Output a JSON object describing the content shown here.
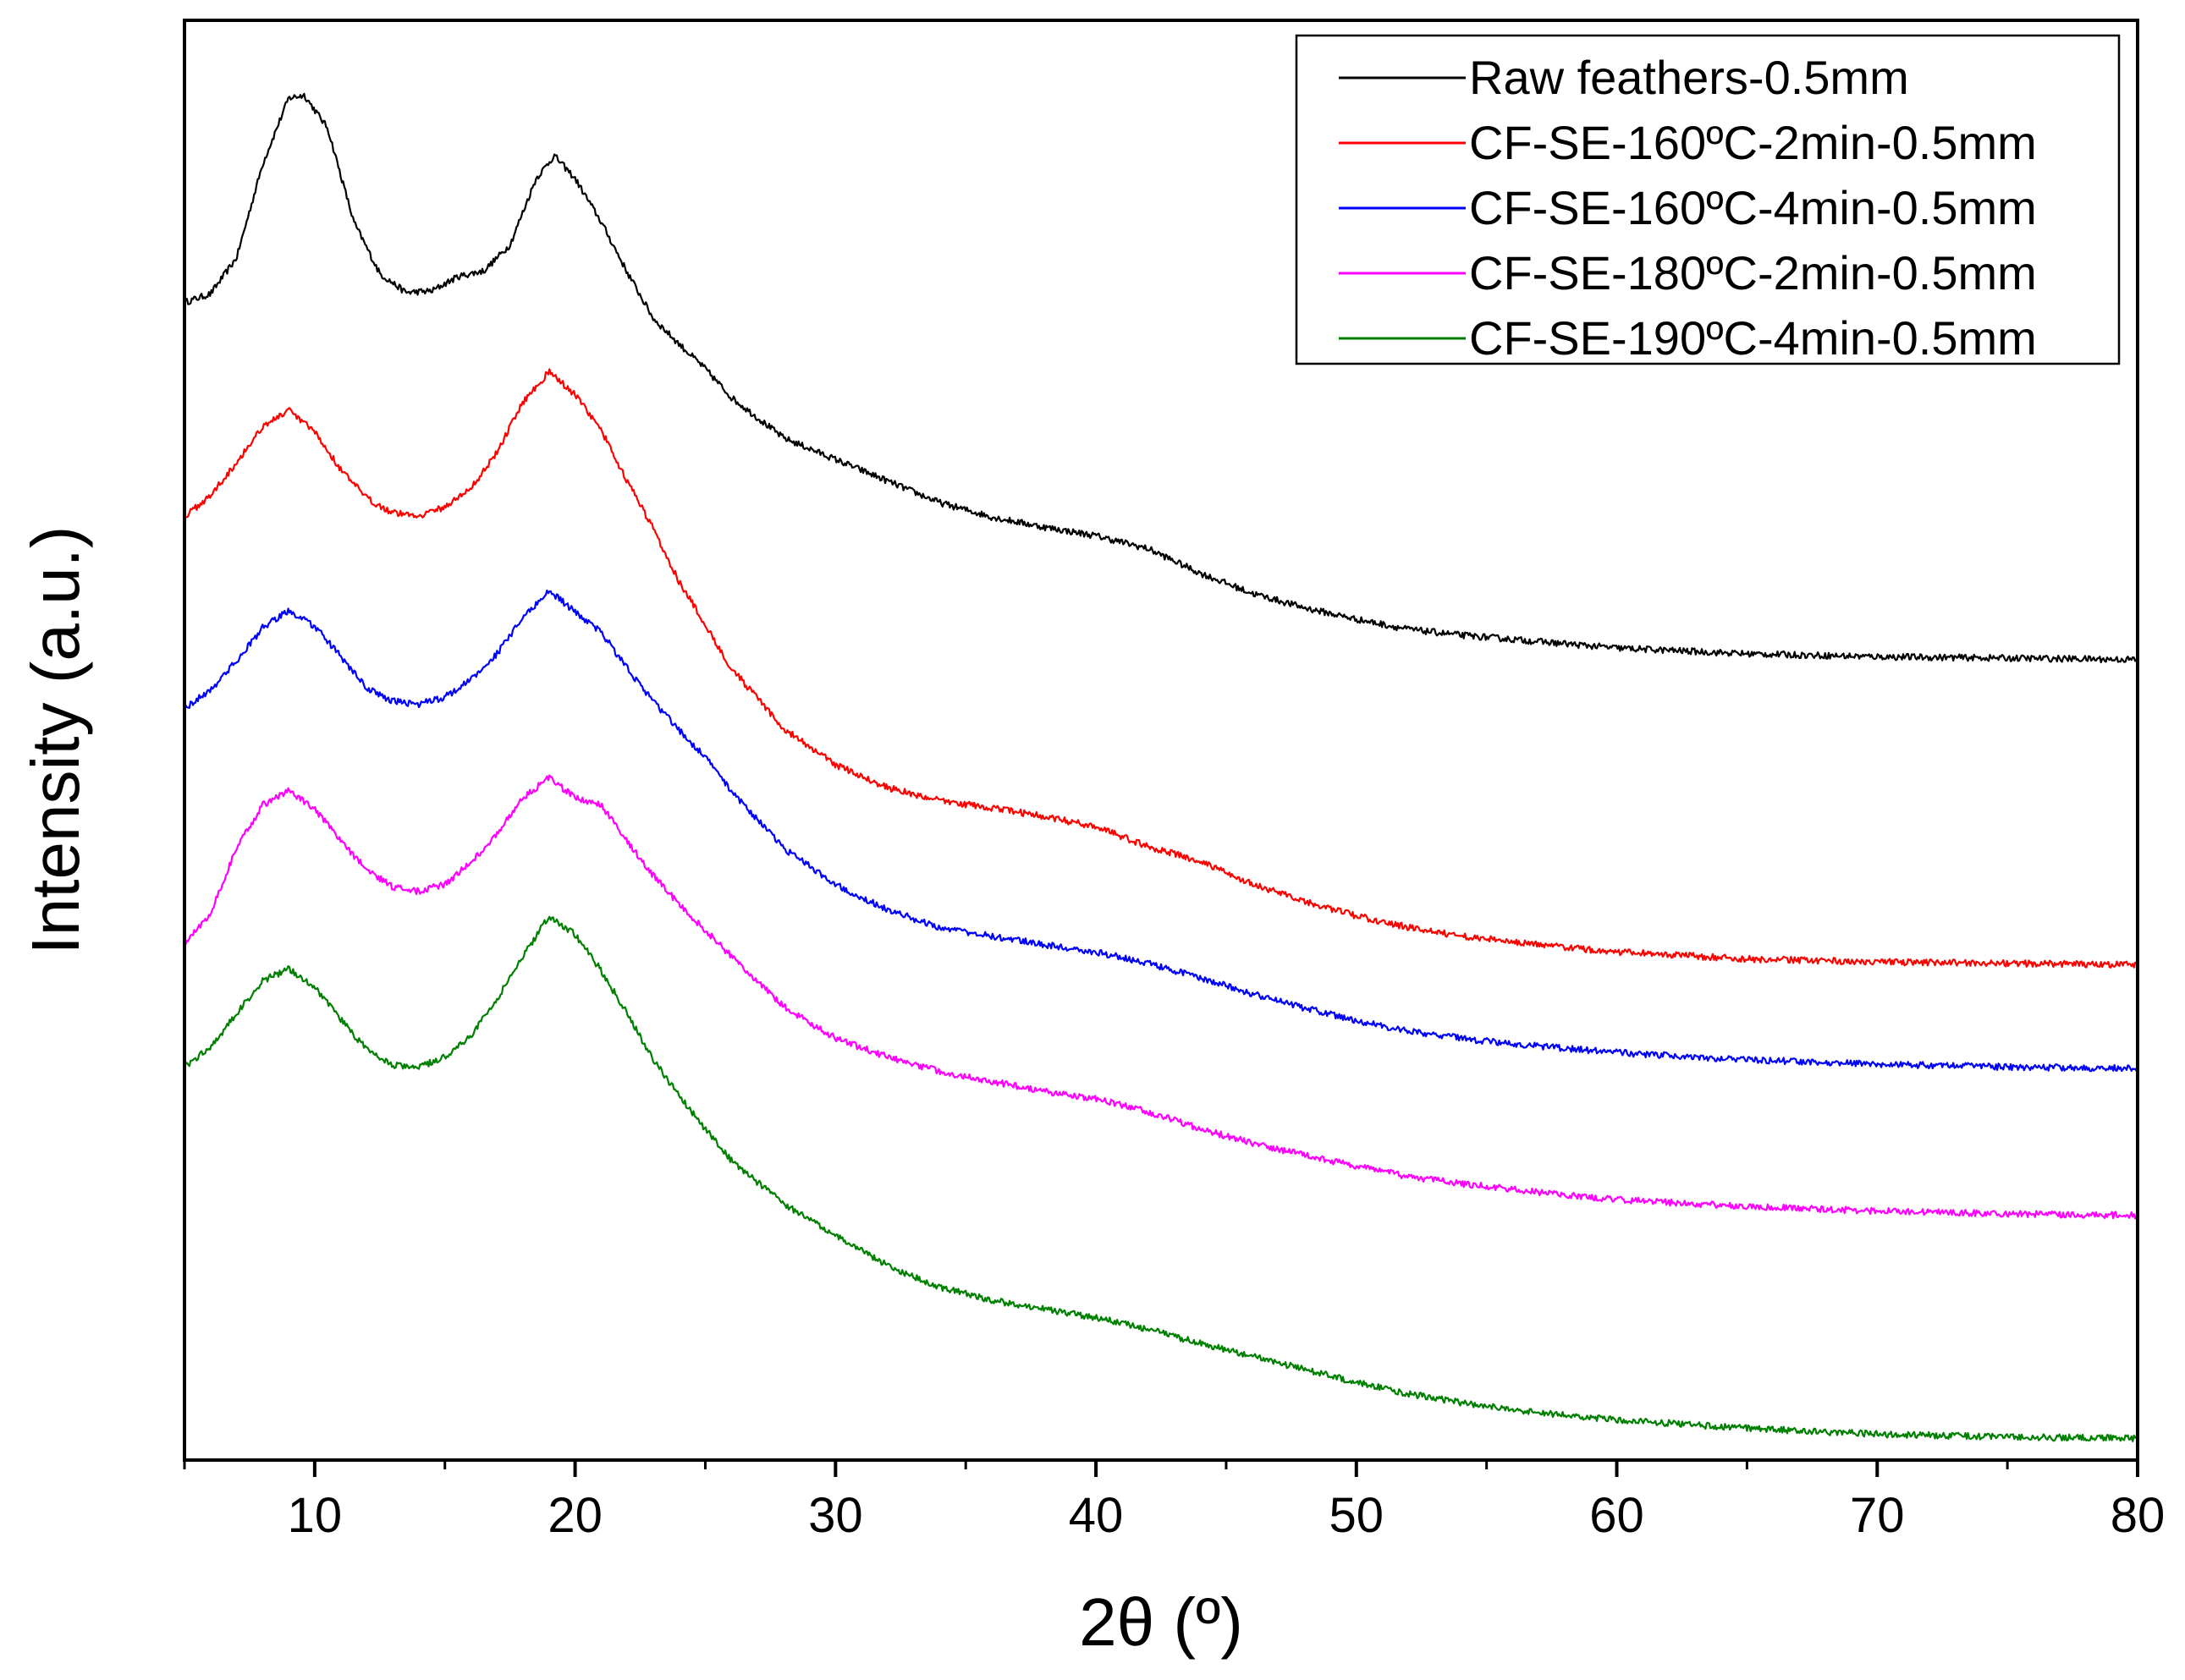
{
  "chart_data": {
    "type": "line",
    "title": "",
    "xlabel": "2θ (º)",
    "ylabel": "Intensity (a.u.)",
    "xlim": [
      5,
      80
    ],
    "ylim": [
      0,
      100
    ],
    "xticks": [
      10,
      20,
      30,
      40,
      50,
      60,
      70,
      80
    ],
    "xtick_labels": [
      "10",
      "20",
      "30",
      "40",
      "50",
      "60",
      "70",
      "80"
    ],
    "yticks_shown": false,
    "legend_position": "top-right",
    "series": [
      {
        "name": "Raw feathers-0.5mm",
        "color": "#000000",
        "points": [
          [
            5,
            80.4
          ],
          [
            6,
            81.0
          ],
          [
            7,
            83.5
          ],
          [
            8,
            90.0
          ],
          [
            9,
            94.6
          ],
          [
            9.6,
            94.8
          ],
          [
            10.5,
            92.5
          ],
          [
            11.5,
            86.0
          ],
          [
            12.5,
            82.4
          ],
          [
            13.5,
            81.1
          ],
          [
            14.5,
            81.2
          ],
          [
            15.5,
            82.2
          ],
          [
            16.5,
            82.6
          ],
          [
            17.5,
            84.4
          ],
          [
            18.5,
            89.0
          ],
          [
            19.2,
            90.6
          ],
          [
            20,
            89.0
          ],
          [
            21,
            86.0
          ],
          [
            22,
            82.5
          ],
          [
            23,
            79.3
          ],
          [
            24,
            77.5
          ],
          [
            25,
            75.8
          ],
          [
            26,
            73.8
          ],
          [
            28,
            71.0
          ],
          [
            30,
            69.5
          ],
          [
            32,
            68.0
          ],
          [
            34,
            66.5
          ],
          [
            36,
            65.5
          ],
          [
            38,
            64.8
          ],
          [
            40,
            64.2
          ],
          [
            42,
            63.3
          ],
          [
            44,
            61.6
          ],
          [
            46,
            60.2
          ],
          [
            48,
            59.2
          ],
          [
            50,
            58.4
          ],
          [
            52,
            57.7
          ],
          [
            54,
            57.3
          ],
          [
            56,
            57.0
          ],
          [
            58,
            56.7
          ],
          [
            60,
            56.4
          ],
          [
            65,
            56.0
          ],
          [
            70,
            55.8
          ],
          [
            75,
            55.7
          ],
          [
            80,
            55.6
          ]
        ]
      },
      {
        "name": "CF-SE-160ºC-2min-0.5mm",
        "color": "#ff0000",
        "points": [
          [
            5,
            65.5
          ],
          [
            6,
            67.0
          ],
          [
            7,
            69.3
          ],
          [
            8,
            71.8
          ],
          [
            9,
            72.9
          ],
          [
            10,
            71.4
          ],
          [
            11,
            68.8
          ],
          [
            12,
            66.8
          ],
          [
            13,
            65.8
          ],
          [
            14,
            65.6
          ],
          [
            15,
            66.2
          ],
          [
            16,
            67.5
          ],
          [
            17,
            70.0
          ],
          [
            18,
            73.5
          ],
          [
            19,
            75.6
          ],
          [
            20,
            74.0
          ],
          [
            21,
            71.5
          ],
          [
            22,
            68.0
          ],
          [
            23,
            64.7
          ],
          [
            24,
            61.0
          ],
          [
            25,
            58.0
          ],
          [
            26,
            55.0
          ],
          [
            28,
            50.8
          ],
          [
            30,
            48.3
          ],
          [
            32,
            46.7
          ],
          [
            34,
            45.8
          ],
          [
            36,
            45.3
          ],
          [
            38,
            44.7
          ],
          [
            40,
            44.0
          ],
          [
            42,
            42.6
          ],
          [
            44,
            41.6
          ],
          [
            46,
            40.0
          ],
          [
            48,
            38.8
          ],
          [
            50,
            37.8
          ],
          [
            52,
            37.0
          ],
          [
            54,
            36.4
          ],
          [
            56,
            36.0
          ],
          [
            58,
            35.6
          ],
          [
            60,
            35.3
          ],
          [
            65,
            34.8
          ],
          [
            70,
            34.6
          ],
          [
            75,
            34.5
          ],
          [
            80,
            34.4
          ]
        ]
      },
      {
        "name": "CF-SE-160ºC-4min-0.5mm",
        "color": "#0000ff",
        "points": [
          [
            5,
            52.2
          ],
          [
            6,
            53.5
          ],
          [
            7,
            55.5
          ],
          [
            8,
            57.8
          ],
          [
            9,
            59.0
          ],
          [
            10,
            57.9
          ],
          [
            11,
            55.8
          ],
          [
            12,
            53.6
          ],
          [
            13,
            52.7
          ],
          [
            14,
            52.5
          ],
          [
            15,
            53.0
          ],
          [
            16,
            54.2
          ],
          [
            17,
            56.0
          ],
          [
            18,
            58.5
          ],
          [
            19,
            60.4
          ],
          [
            20,
            58.9
          ],
          [
            21,
            57.5
          ],
          [
            22,
            55.0
          ],
          [
            23,
            52.7
          ],
          [
            24,
            50.7
          ],
          [
            25,
            48.8
          ],
          [
            26,
            46.5
          ],
          [
            28,
            42.5
          ],
          [
            30,
            40.0
          ],
          [
            32,
            38.2
          ],
          [
            34,
            37.0
          ],
          [
            36,
            36.4
          ],
          [
            38,
            35.8
          ],
          [
            40,
            35.3
          ],
          [
            42,
            34.5
          ],
          [
            44,
            33.5
          ],
          [
            46,
            32.4
          ],
          [
            48,
            31.4
          ],
          [
            50,
            30.5
          ],
          [
            52,
            29.8
          ],
          [
            54,
            29.3
          ],
          [
            56,
            28.9
          ],
          [
            58,
            28.6
          ],
          [
            60,
            28.3
          ],
          [
            65,
            27.8
          ],
          [
            70,
            27.5
          ],
          [
            75,
            27.3
          ],
          [
            80,
            27.2
          ]
        ]
      },
      {
        "name": "CF-SE-180ºC-2min-0.5mm",
        "color": "#ff00ff",
        "points": [
          [
            5,
            35.8
          ],
          [
            6,
            38.0
          ],
          [
            7,
            42.5
          ],
          [
            8,
            45.5
          ],
          [
            9,
            46.5
          ],
          [
            10,
            45.2
          ],
          [
            11,
            43.0
          ],
          [
            12,
            41.0
          ],
          [
            13,
            39.8
          ],
          [
            14,
            39.5
          ],
          [
            15,
            40.0
          ],
          [
            16,
            41.5
          ],
          [
            17,
            43.5
          ],
          [
            18,
            46.0
          ],
          [
            19,
            47.4
          ],
          [
            20,
            46.0
          ],
          [
            21,
            45.5
          ],
          [
            22,
            43.0
          ],
          [
            23,
            40.6
          ],
          [
            24,
            38.6
          ],
          [
            25,
            36.8
          ],
          [
            26,
            35.0
          ],
          [
            28,
            31.5
          ],
          [
            30,
            29.3
          ],
          [
            32,
            28.0
          ],
          [
            34,
            27.0
          ],
          [
            36,
            26.3
          ],
          [
            38,
            25.6
          ],
          [
            40,
            25.1
          ],
          [
            42,
            24.2
          ],
          [
            44,
            23.0
          ],
          [
            46,
            22.0
          ],
          [
            48,
            21.2
          ],
          [
            50,
            20.4
          ],
          [
            52,
            19.7
          ],
          [
            54,
            19.2
          ],
          [
            56,
            18.8
          ],
          [
            58,
            18.4
          ],
          [
            60,
            18.1
          ],
          [
            65,
            17.6
          ],
          [
            70,
            17.3
          ],
          [
            75,
            17.1
          ],
          [
            80,
            17.0
          ]
        ]
      },
      {
        "name": "CF-SE-190ºC-4min-0.5mm",
        "color": "#008000",
        "points": [
          [
            5,
            27.3
          ],
          [
            6,
            28.7
          ],
          [
            7,
            31.0
          ],
          [
            8,
            33.3
          ],
          [
            9,
            34.1
          ],
          [
            10,
            32.9
          ],
          [
            11,
            30.6
          ],
          [
            12,
            28.5
          ],
          [
            13,
            27.4
          ],
          [
            14,
            27.3
          ],
          [
            15,
            28.0
          ],
          [
            16,
            29.5
          ],
          [
            17,
            32.0
          ],
          [
            18,
            35.0
          ],
          [
            19,
            37.8
          ],
          [
            20,
            36.5
          ],
          [
            21,
            34.0
          ],
          [
            22,
            31.0
          ],
          [
            23,
            27.8
          ],
          [
            24,
            25.3
          ],
          [
            25,
            23.0
          ],
          [
            26,
            20.8
          ],
          [
            28,
            17.8
          ],
          [
            30,
            15.6
          ],
          [
            32,
            13.5
          ],
          [
            34,
            12.0
          ],
          [
            36,
            11.1
          ],
          [
            38,
            10.5
          ],
          [
            40,
            9.9
          ],
          [
            42,
            9.1
          ],
          [
            44,
            8.1
          ],
          [
            46,
            7.2
          ],
          [
            48,
            6.3
          ],
          [
            50,
            5.4
          ],
          [
            52,
            4.6
          ],
          [
            54,
            4.0
          ],
          [
            56,
            3.5
          ],
          [
            58,
            3.1
          ],
          [
            60,
            2.8
          ],
          [
            65,
            2.2
          ],
          [
            70,
            1.8
          ],
          [
            75,
            1.6
          ],
          [
            80,
            1.5
          ]
        ]
      }
    ]
  }
}
